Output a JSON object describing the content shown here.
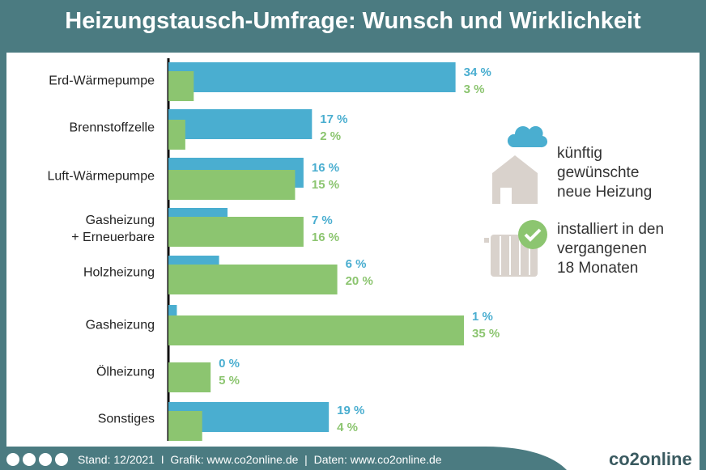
{
  "chart_data": {
    "type": "bar",
    "orientation": "horizontal",
    "title": "Heizungstausch-Umfrage: Wunsch und Wirklichkeit",
    "categories": [
      "Erd-Wärmepumpe",
      "Brennstoffzelle",
      "Luft-Wärmepumpe",
      "Gasheizung\n+ Erneuerbare",
      "Holzheizung",
      "Gasheizung",
      "Ölheizung",
      "Sonstiges"
    ],
    "series": [
      {
        "name": "künftig\ngewünschte\nneue Heizung",
        "color": "#4aaed0",
        "values": [
          34,
          17,
          16,
          7,
          6,
          1,
          0,
          19
        ],
        "value_labels": [
          "34 %",
          "17 %",
          "16 %",
          "7 %",
          "6 %",
          "1 %",
          "0 %",
          "19 %"
        ]
      },
      {
        "name": "installiert in den\nvergangenen\n18 Monaten",
        "color": "#8cc570",
        "values": [
          3,
          2,
          15,
          16,
          20,
          35,
          5,
          4
        ],
        "value_labels": [
          "3 %",
          "2 %",
          "15 %",
          "16 %",
          "20 %",
          "35 %",
          "5 %",
          "4 %"
        ]
      }
    ]
  },
  "footer": {
    "source": "Stand: 12/2021  I  Grafik: www.co2online.de  |  Daten: www.co2online.de",
    "logo": "co2online"
  }
}
